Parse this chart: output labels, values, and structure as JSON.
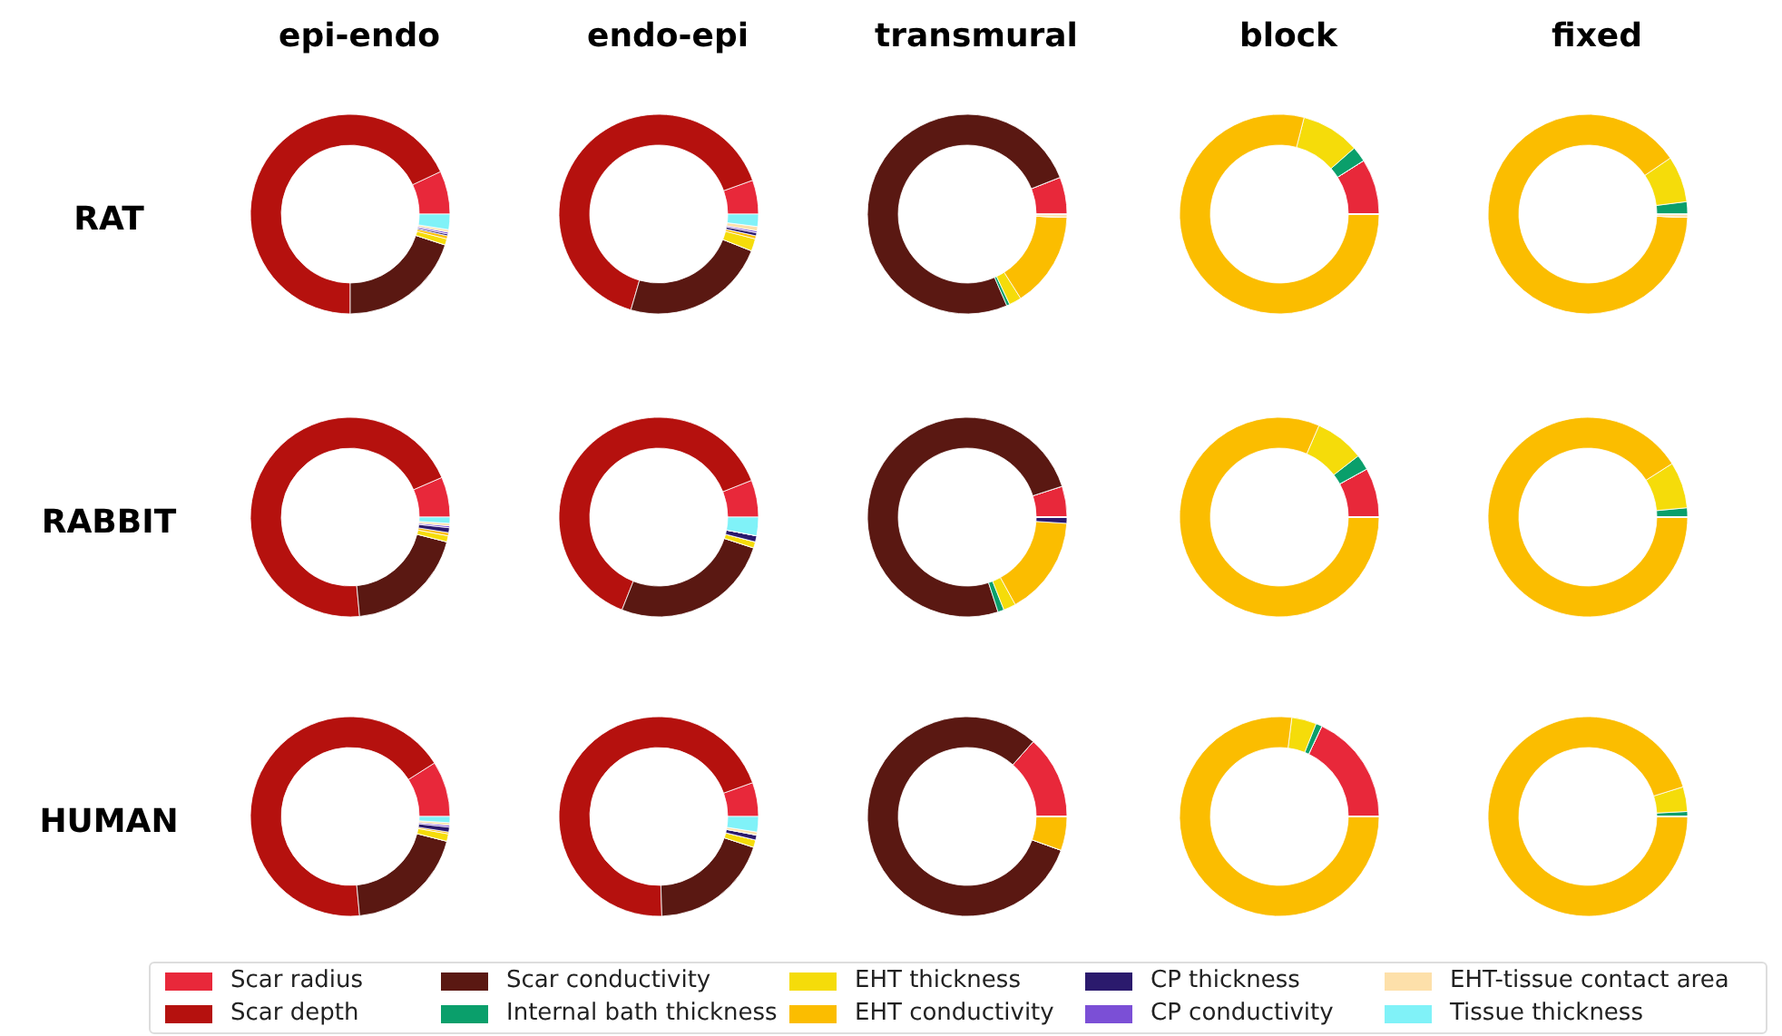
{
  "chart_data": [
    {
      "type": "donut",
      "title": "epi-endo",
      "ylabel": "RAT",
      "legend": "bottom",
      "categories": [
        "Scar radius",
        "Scar depth",
        "Scar conductivity",
        "Internal bath thickness",
        "EHT thickness",
        "EHT conductivity",
        "CP thickness",
        "CP conductivity",
        "EHT-tissue contact area",
        "Tissue thickness"
      ],
      "values": [
        7,
        68,
        20,
        0,
        1,
        0.5,
        0.3,
        0.3,
        0.4,
        2.5
      ],
      "colors": [
        "#e8283a",
        "#b5110e",
        "#5a1812",
        "#0a9f6b",
        "#f5dc0a",
        "#fbbd00",
        "#2b1a6d",
        "#7b4fd6",
        "#fde0aa",
        "#80f2f8"
      ]
    },
    {
      "type": "donut",
      "title": "endo-epi",
      "categories": [
        null,
        null,
        null,
        null,
        null,
        null,
        null,
        null,
        null,
        null
      ],
      "values": [
        5.5,
        65,
        23.5,
        0,
        2,
        0.5,
        0.5,
        0.3,
        0.7,
        2
      ],
      "colors": [
        "#e8283a",
        "#b5110e",
        "#5a1812",
        "#0a9f6b",
        "#f5dc0a",
        "#fbbd00",
        "#2b1a6d",
        "#7b4fd6",
        "#fde0aa",
        "#80f2f8"
      ]
    },
    {
      "type": "donut",
      "title": "transmural",
      "categories": [
        null,
        null,
        null,
        null,
        null,
        null,
        null,
        null,
        null,
        null
      ],
      "values": [
        6,
        0,
        75.5,
        0.5,
        2,
        15.5,
        0,
        0,
        0.5,
        0
      ],
      "colors": [
        "#e8283a",
        "#b5110e",
        "#5a1812",
        "#0a9f6b",
        "#f5dc0a",
        "#fbbd00",
        "#2b1a6d",
        "#7b4fd6",
        "#fde0aa",
        "#80f2f8"
      ]
    },
    {
      "type": "donut",
      "title": "block",
      "categories": [
        null,
        null,
        null,
        null,
        null,
        null,
        null,
        null,
        null,
        null
      ],
      "values": [
        9,
        0,
        0,
        2.5,
        9.5,
        79,
        0,
        0,
        0,
        0
      ],
      "colors": [
        "#e8283a",
        "#b5110e",
        "#5a1812",
        "#0a9f6b",
        "#f5dc0a",
        "#fbbd00",
        "#2b1a6d",
        "#7b4fd6",
        "#fde0aa",
        "#80f2f8"
      ]
    },
    {
      "type": "donut",
      "title": "fixed",
      "categories": [
        null,
        null,
        null,
        null,
        null,
        null,
        null,
        null,
        null,
        null
      ],
      "values": [
        0,
        0,
        0,
        2,
        7.5,
        90,
        0,
        0,
        0.5,
        0
      ],
      "colors": [
        "#e8283a",
        "#b5110e",
        "#5a1812",
        "#0a9f6b",
        "#f5dc0a",
        "#fbbd00",
        "#2b1a6d",
        "#7b4fd6",
        "#fde0aa",
        "#80f2f8"
      ]
    },
    {
      "type": "donut",
      "ylabel": "RABBIT",
      "categories": [
        null,
        null,
        null,
        null,
        null,
        null,
        null,
        null,
        null,
        null
      ],
      "values": [
        6.5,
        70,
        19.5,
        0,
        1,
        0.5,
        0.8,
        0.3,
        0.4,
        1
      ],
      "colors": [
        "#e8283a",
        "#b5110e",
        "#5a1812",
        "#0a9f6b",
        "#f5dc0a",
        "#fbbd00",
        "#2b1a6d",
        "#7b4fd6",
        "#fde0aa",
        "#80f2f8"
      ]
    },
    {
      "type": "donut",
      "categories": [
        null,
        null,
        null,
        null,
        null,
        null,
        null,
        null,
        null,
        null
      ],
      "values": [
        6,
        63,
        26,
        0,
        1,
        0,
        1,
        0,
        0,
        3
      ],
      "colors": [
        "#e8283a",
        "#b5110e",
        "#5a1812",
        "#0a9f6b",
        "#f5dc0a",
        "#fbbd00",
        "#2b1a6d",
        "#7b4fd6",
        "#fde0aa",
        "#80f2f8"
      ]
    },
    {
      "type": "donut",
      "categories": [
        null,
        null,
        null,
        null,
        null,
        null,
        null,
        null,
        null,
        null
      ],
      "values": [
        5,
        0,
        75,
        1,
        2,
        16,
        1,
        0,
        0,
        0
      ],
      "colors": [
        "#e8283a",
        "#b5110e",
        "#5a1812",
        "#0a9f6b",
        "#f5dc0a",
        "#fbbd00",
        "#2b1a6d",
        "#7b4fd6",
        "#fde0aa",
        "#80f2f8"
      ]
    },
    {
      "type": "donut",
      "categories": [
        null,
        null,
        null,
        null,
        null,
        null,
        null,
        null,
        null,
        null
      ],
      "values": [
        8,
        0,
        0,
        2.5,
        8,
        81.5,
        0,
        0,
        0,
        0
      ],
      "colors": [
        "#e8283a",
        "#b5110e",
        "#5a1812",
        "#0a9f6b",
        "#f5dc0a",
        "#fbbd00",
        "#2b1a6d",
        "#7b4fd6",
        "#fde0aa",
        "#80f2f8"
      ]
    },
    {
      "type": "donut",
      "categories": [
        null,
        null,
        null,
        null,
        null,
        null,
        null,
        null,
        null,
        null
      ],
      "values": [
        0,
        0,
        0,
        1.5,
        7.5,
        91,
        0,
        0,
        0,
        0
      ],
      "colors": [
        "#e8283a",
        "#b5110e",
        "#5a1812",
        "#0a9f6b",
        "#f5dc0a",
        "#fbbd00",
        "#2b1a6d",
        "#7b4fd6",
        "#fde0aa",
        "#80f2f8"
      ]
    },
    {
      "type": "donut",
      "ylabel": "HUMAN",
      "categories": [
        null,
        null,
        null,
        null,
        null,
        null,
        null,
        null,
        null,
        null
      ],
      "values": [
        9,
        67.5,
        19.5,
        0,
        1.2,
        0.3,
        0.8,
        0.3,
        0.4,
        1
      ],
      "colors": [
        "#e8283a",
        "#b5110e",
        "#5a1812",
        "#0a9f6b",
        "#f5dc0a",
        "#fbbd00",
        "#2b1a6d",
        "#7b4fd6",
        "#fde0aa",
        "#80f2f8"
      ]
    },
    {
      "type": "donut",
      "categories": [
        null,
        null,
        null,
        null,
        null,
        null,
        null,
        null,
        null,
        null
      ],
      "values": [
        5.5,
        70,
        19.5,
        0,
        1.2,
        0,
        0.8,
        0,
        0.5,
        2.5
      ],
      "colors": [
        "#e8283a",
        "#b5110e",
        "#5a1812",
        "#0a9f6b",
        "#f5dc0a",
        "#fbbd00",
        "#2b1a6d",
        "#7b4fd6",
        "#fde0aa",
        "#80f2f8"
      ]
    },
    {
      "type": "donut",
      "categories": [
        null,
        null,
        null,
        null,
        null,
        null,
        null,
        null,
        null,
        null
      ],
      "values": [
        13.5,
        0,
        81,
        0,
        0,
        5.5,
        0,
        0,
        0,
        0
      ],
      "colors": [
        "#e8283a",
        "#b5110e",
        "#5a1812",
        "#0a9f6b",
        "#f5dc0a",
        "#fbbd00",
        "#2b1a6d",
        "#7b4fd6",
        "#fde0aa",
        "#80f2f8"
      ]
    },
    {
      "type": "donut",
      "categories": [
        null,
        null,
        null,
        null,
        null,
        null,
        null,
        null,
        null,
        null
      ],
      "values": [
        18,
        0,
        0,
        1,
        4,
        77,
        0,
        0,
        0,
        0
      ],
      "colors": [
        "#e8283a",
        "#b5110e",
        "#5a1812",
        "#0a9f6b",
        "#f5dc0a",
        "#fbbd00",
        "#2b1a6d",
        "#7b4fd6",
        "#fde0aa",
        "#80f2f8"
      ]
    },
    {
      "type": "donut",
      "categories": [
        null,
        null,
        null,
        null,
        null,
        null,
        null,
        null,
        null,
        null
      ],
      "values": [
        0,
        0,
        0,
        0.8,
        4,
        95.2,
        0,
        0,
        0,
        0
      ],
      "colors": [
        "#e8283a",
        "#b5110e",
        "#5a1812",
        "#0a9f6b",
        "#f5dc0a",
        "#fbbd00",
        "#2b1a6d",
        "#7b4fd6",
        "#fde0aa",
        "#80f2f8"
      ]
    }
  ]
}
